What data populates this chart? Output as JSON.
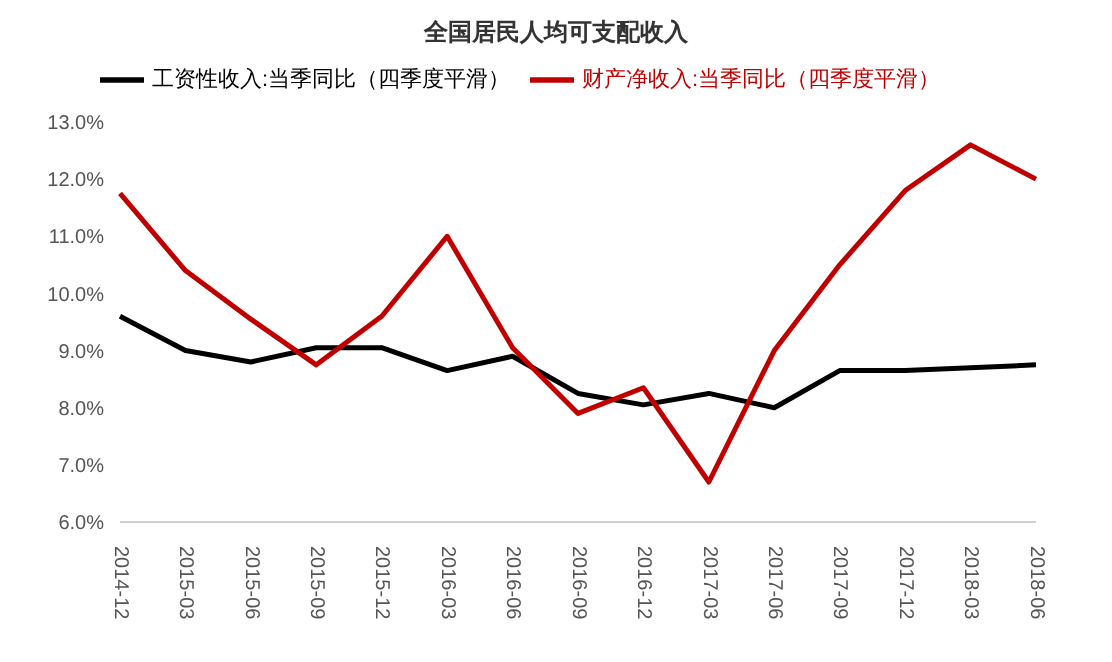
{
  "chart_data": {
    "type": "line",
    "title": "全国居民人均可支配收入",
    "categories": [
      "2014-12",
      "2015-03",
      "2015-06",
      "2015-09",
      "2015-12",
      "2016-03",
      "2016-06",
      "2016-09",
      "2016-12",
      "2017-03",
      "2017-06",
      "2017-09",
      "2017-12",
      "2018-03",
      "2018-06"
    ],
    "series": [
      {
        "name": "工资性收入:当季同比（四季度平滑）",
        "color": "#000000",
        "values": [
          9.6,
          9.0,
          8.8,
          9.05,
          9.05,
          8.65,
          8.9,
          8.25,
          8.05,
          8.25,
          8.0,
          8.65,
          8.65,
          8.7,
          8.75
        ]
      },
      {
        "name": "财产净收入:当季同比（四季度平滑）",
        "color": "#c00000",
        "values": [
          11.75,
          10.4,
          9.55,
          8.75,
          9.6,
          11.0,
          9.05,
          7.9,
          8.35,
          6.7,
          9.0,
          10.5,
          11.8,
          12.6,
          12.0
        ]
      }
    ],
    "ylim": [
      6,
      13
    ],
    "yticks": [
      {
        "value": 6,
        "label": "6.0%"
      },
      {
        "value": 7,
        "label": "7.0%"
      },
      {
        "value": 8,
        "label": "8.0%"
      },
      {
        "value": 9,
        "label": "9.0%"
      },
      {
        "value": 10,
        "label": "10.0%"
      },
      {
        "value": 11,
        "label": "11.0%"
      },
      {
        "value": 12,
        "label": "12.0%"
      },
      {
        "value": 13,
        "label": "13.0%"
      }
    ],
    "grid": false,
    "legend": "top",
    "marker": "none",
    "line_style": "solid"
  }
}
